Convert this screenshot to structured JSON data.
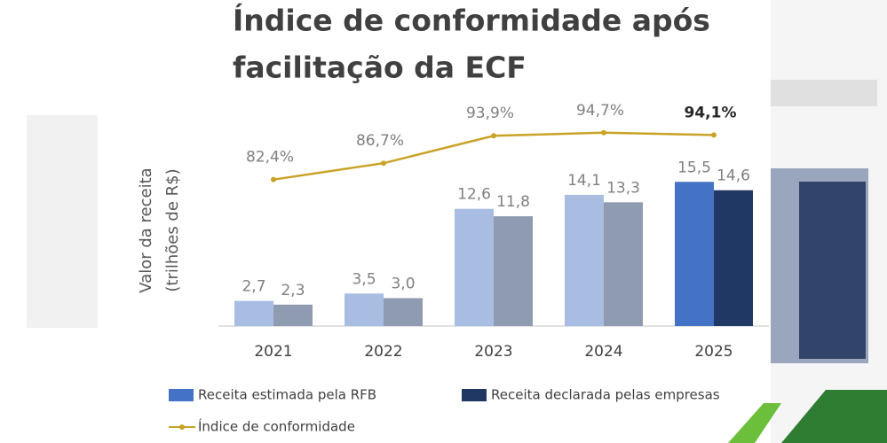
{
  "chart_data": {
    "type": "bar-line",
    "title": [
      "Índice de conformidade após",
      "facilitação da ECF"
    ],
    "y_label": [
      "Valor da receita",
      "(trilhões de R$)"
    ],
    "categories": [
      "2021",
      "2022",
      "2023",
      "2024",
      "2025"
    ],
    "ylim": [
      0,
      20
    ],
    "y2lim": [
      60,
      100
    ],
    "series": [
      {
        "name": "Receita estimada pela RFB",
        "color": "#4472c4",
        "colors": [
          "#a9bde3",
          "#a9bde3",
          "#a9bde3",
          "#a9bde3",
          "#4472c4"
        ],
        "values": [
          2.7,
          3.5,
          12.6,
          14.1,
          15.5
        ],
        "value_labels": [
          "2,7",
          "3,5",
          "12,6",
          "14,1",
          "15,5"
        ]
      },
      {
        "name": "Receita declarada pelas empresas",
        "color": "#1f3864",
        "colors": [
          "#8e9bb0",
          "#8e9bb0",
          "#8e9bb0",
          "#8e9bb0",
          "#1f3864"
        ],
        "values": [
          2.3,
          3.0,
          11.8,
          13.3,
          14.6
        ],
        "value_labels": [
          "2,3",
          "3,0",
          "11,8",
          "13,3",
          "14,6"
        ]
      },
      {
        "name": "Índice de conformidade",
        "type": "line",
        "axis": "y2",
        "color": "#c9a227",
        "values": [
          82.4,
          86.7,
          93.9,
          94.7,
          94.1
        ],
        "value_labels": [
          "82,4%",
          "86,7%",
          "93,9%",
          "94,7%",
          "94,1%"
        ]
      }
    ]
  }
}
